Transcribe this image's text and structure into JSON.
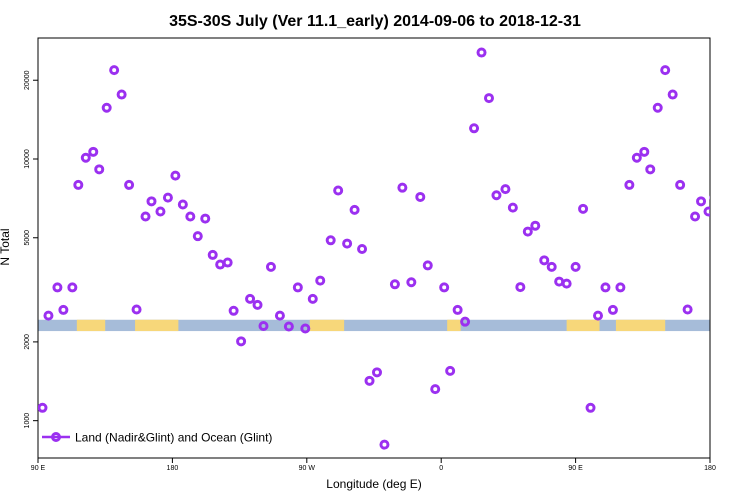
{
  "chart_data": {
    "type": "scatter",
    "title": "35S-30S July (Ver 11.1_early)   2014-09-06 to 2018-12-31",
    "xlabel": "Longitude (deg E)",
    "ylabel": "N Total",
    "yscale": "log",
    "xlim": [
      90,
      540
    ],
    "ylim": [
      720,
      29000
    ],
    "x_ticks": [
      {
        "value": 90,
        "label": "90 E"
      },
      {
        "value": 180,
        "label": "180"
      },
      {
        "value": 270,
        "label": "90 W"
      },
      {
        "value": 360,
        "label": "0"
      },
      {
        "value": 450,
        "label": "90 E"
      },
      {
        "value": 540,
        "label": "180"
      }
    ],
    "y_ticks": [
      {
        "value": 1000,
        "label": "1000"
      },
      {
        "value": 2000,
        "label": "2000"
      },
      {
        "value": 5000,
        "label": "5000"
      },
      {
        "value": 10000,
        "label": "10000"
      },
      {
        "value": 20000,
        "label": "20000"
      }
    ],
    "colors": {
      "series": "#9b30f0",
      "ocean_band": "#a6bcd9",
      "land_band": "#f7d77a"
    },
    "surface_band": {
      "y_range": [
        2200,
        2430
      ],
      "land_segments": [
        [
          116,
          135
        ],
        [
          155,
          184
        ],
        [
          272,
          295
        ],
        [
          364,
          373
        ],
        [
          444,
          466
        ],
        [
          477,
          510
        ]
      ]
    },
    "legend": {
      "label": "Land (Nadir&Glint) and Ocean (Glint)",
      "position": "bottom-left"
    },
    "series": [
      {
        "name": "Land (Nadir&Glint) and Ocean (Glint)",
        "points": [
          [
            93,
            1120
          ],
          [
            97,
            2520
          ],
          [
            103,
            3230
          ],
          [
            107,
            2650
          ],
          [
            113,
            3230
          ],
          [
            117,
            7960
          ],
          [
            122,
            10110
          ],
          [
            127,
            10650
          ],
          [
            131,
            9130
          ],
          [
            136,
            15700
          ],
          [
            141,
            21860
          ],
          [
            146,
            17630
          ],
          [
            151,
            7960
          ],
          [
            156,
            2660
          ],
          [
            162,
            6030
          ],
          [
            166,
            6890
          ],
          [
            172,
            6300
          ],
          [
            177,
            7120
          ],
          [
            182,
            8640
          ],
          [
            187,
            6700
          ],
          [
            192,
            6030
          ],
          [
            197,
            5070
          ],
          [
            202,
            5920
          ],
          [
            207,
            4300
          ],
          [
            212,
            3950
          ],
          [
            217,
            4020
          ],
          [
            221,
            2630
          ],
          [
            226,
            2010
          ],
          [
            232,
            2920
          ],
          [
            237,
            2770
          ],
          [
            241,
            2300
          ],
          [
            246,
            3870
          ],
          [
            252,
            2520
          ],
          [
            258,
            2290
          ],
          [
            264,
            3230
          ],
          [
            269,
            2250
          ],
          [
            274,
            2920
          ],
          [
            279,
            3430
          ],
          [
            286,
            4890
          ],
          [
            291,
            7580
          ],
          [
            297,
            4750
          ],
          [
            302,
            6390
          ],
          [
            307,
            4530
          ],
          [
            312,
            1420
          ],
          [
            317,
            1530
          ],
          [
            322,
            810
          ],
          [
            329,
            3320
          ],
          [
            334,
            7770
          ],
          [
            340,
            3380
          ],
          [
            346,
            7160
          ],
          [
            351,
            3920
          ],
          [
            356,
            1320
          ],
          [
            362,
            3230
          ],
          [
            366,
            1550
          ],
          [
            371,
            2650
          ],
          [
            376,
            2390
          ],
          [
            382,
            13100
          ],
          [
            387,
            25520
          ],
          [
            392,
            17090
          ],
          [
            397,
            7270
          ],
          [
            403,
            7670
          ],
          [
            408,
            6520
          ],
          [
            413,
            3240
          ],
          [
            418,
            5280
          ],
          [
            423,
            5560
          ],
          [
            429,
            4100
          ],
          [
            434,
            3870
          ],
          [
            439,
            3400
          ],
          [
            444,
            3340
          ],
          [
            450,
            3870
          ],
          [
            455,
            6450
          ],
          [
            460,
            1120
          ],
          [
            465,
            2520
          ],
          [
            470,
            3230
          ],
          [
            475,
            2650
          ],
          [
            480,
            3230
          ],
          [
            486,
            7960
          ],
          [
            491,
            10110
          ],
          [
            496,
            10650
          ],
          [
            500,
            9130
          ],
          [
            505,
            15700
          ],
          [
            510,
            21860
          ],
          [
            515,
            17630
          ],
          [
            520,
            7960
          ],
          [
            525,
            2660
          ],
          [
            530,
            6030
          ],
          [
            534,
            6890
          ],
          [
            539,
            6300
          ],
          [
            543,
            7120
          ]
        ]
      }
    ]
  }
}
